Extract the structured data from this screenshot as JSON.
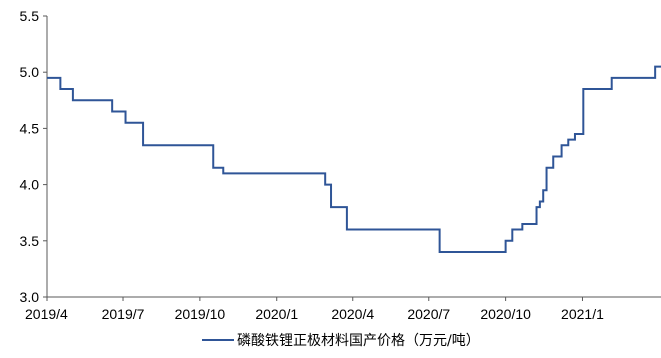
{
  "chart_data": {
    "type": "line",
    "title": "",
    "xlabel": "",
    "ylabel": "",
    "ylim": [
      3.0,
      5.5
    ],
    "xlim": [
      "2019-04-01",
      "2021-04-05"
    ],
    "grid": false,
    "legend_position": "bottom",
    "yticks": [
      3.0,
      3.5,
      4.0,
      4.5,
      5.0,
      5.5
    ],
    "ytick_labels": [
      "3.0",
      "3.5",
      "4.0",
      "4.5",
      "5.0",
      "5.5"
    ],
    "xticks": [
      "2019-04-01",
      "2019-07-01",
      "2019-10-01",
      "2020-01-01",
      "2020-04-01",
      "2020-07-01",
      "2020-10-01",
      "2021-01-01"
    ],
    "xtick_labels": [
      "2019/4",
      "2019/7",
      "2019/10",
      "2020/1",
      "2020/4",
      "2020/7",
      "2020/10",
      "2021/1"
    ],
    "series": [
      {
        "name": "磷酸铁锂正极材料国产价格（万元/吨）",
        "color": "#2f5597",
        "step": true,
        "points": [
          [
            "2019-04-01",
            4.95
          ],
          [
            "2019-04-17",
            4.85
          ],
          [
            "2019-05-02",
            4.75
          ],
          [
            "2019-06-18",
            4.65
          ],
          [
            "2019-07-04",
            4.55
          ],
          [
            "2019-07-25",
            4.35
          ],
          [
            "2019-10-17",
            4.15
          ],
          [
            "2019-10-29",
            4.1
          ],
          [
            "2020-02-28",
            4.0
          ],
          [
            "2020-03-06",
            3.8
          ],
          [
            "2020-03-25",
            3.6
          ],
          [
            "2020-07-14",
            3.4
          ],
          [
            "2020-10-01",
            3.5
          ],
          [
            "2020-10-09",
            3.6
          ],
          [
            "2020-10-21",
            3.65
          ],
          [
            "2020-11-07",
            3.8
          ],
          [
            "2020-11-11",
            3.85
          ],
          [
            "2020-11-15",
            3.95
          ],
          [
            "2020-11-19",
            4.15
          ],
          [
            "2020-11-27",
            4.25
          ],
          [
            "2020-12-07",
            4.35
          ],
          [
            "2020-12-15",
            4.4
          ],
          [
            "2020-12-23",
            4.45
          ],
          [
            "2021-01-02",
            4.85
          ],
          [
            "2021-02-05",
            4.95
          ],
          [
            "2021-03-29",
            5.05
          ],
          [
            "2021-04-05",
            5.05
          ]
        ]
      }
    ]
  }
}
